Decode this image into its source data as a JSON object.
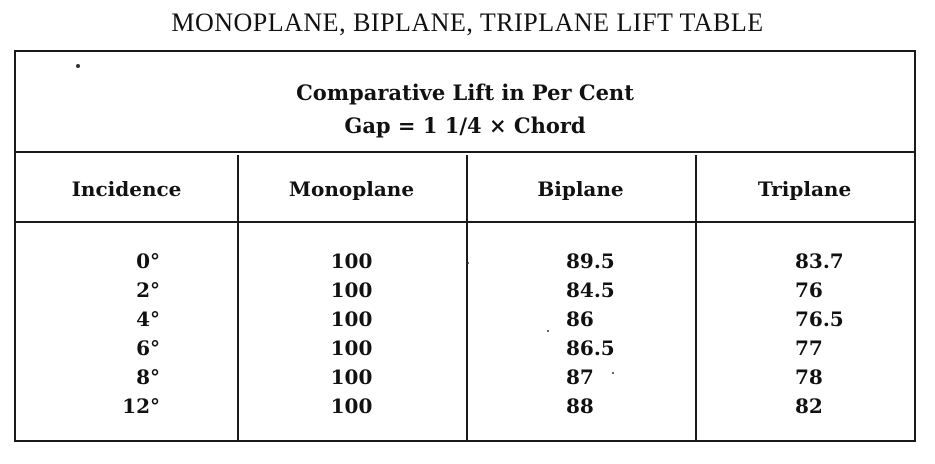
{
  "title": "MONOPLANE, BIPLANE, TRIPLANE LIFT TABLE",
  "caption": {
    "line1": "Comparative Lift in Per Cent",
    "line2": "Gap = 1 1/4 × Chord"
  },
  "columns": [
    "Incidence",
    "Monoplane",
    "Biplane",
    "Triplane"
  ],
  "rows": [
    [
      "0°",
      "100",
      "89.5",
      "83.7"
    ],
    [
      "2°",
      "100",
      "84.5",
      "76"
    ],
    [
      "4°",
      "100",
      "86",
      "76.5"
    ],
    [
      "6°",
      "100",
      "86.5",
      "77"
    ],
    [
      "8°",
      "100",
      "87",
      "78"
    ],
    [
      "12°",
      "100",
      "88",
      "82"
    ]
  ]
}
